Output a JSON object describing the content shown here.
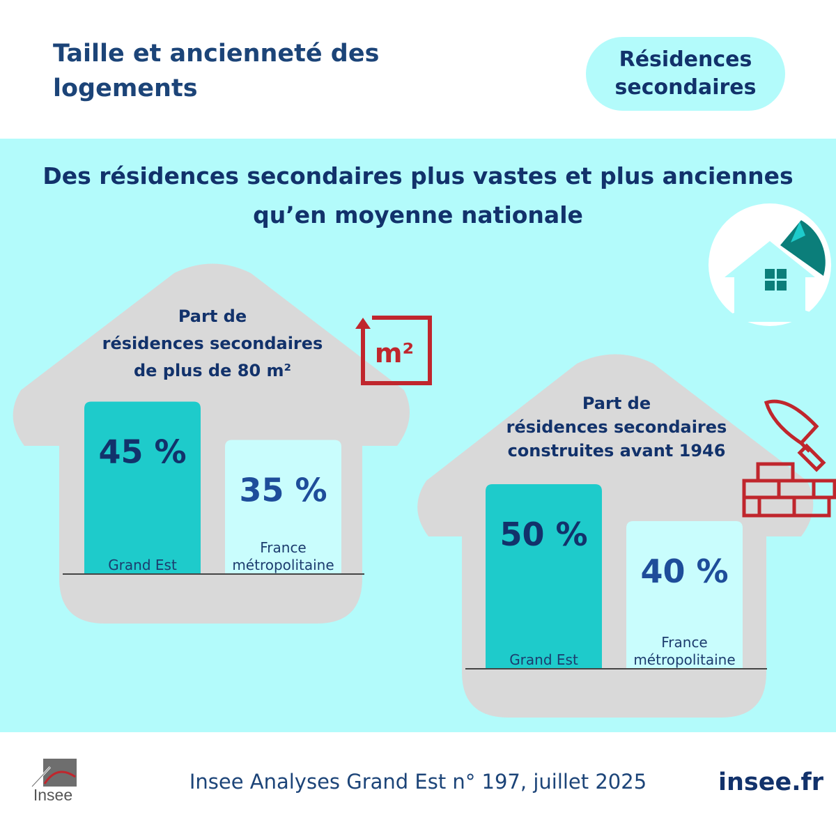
{
  "header": {
    "title": "Taille et ancienneté des logements",
    "tag": "Résidences secondaires"
  },
  "headline": "Des résidences secondaires plus vastes et plus anciennes qu’en moyenne nationale",
  "colors": {
    "navy": "#12326b",
    "title_blue": "#1c4478",
    "panel": "#b3fbfb",
    "teal_bar": "#1ecbcb",
    "light_bar": "#c9fdfd",
    "house_grey": "#d9d9d9",
    "icon_red": "#c0262d",
    "house_icon_teal": "#0b7e7a"
  },
  "icons": [
    "square-meter-icon",
    "house-icon",
    "trowel-bricks-icon",
    "insee-logo-icon"
  ],
  "chart_data": [
    {
      "type": "bar",
      "title": "Part de résidences secondaires de plus de 80 m²",
      "title_lines": [
        "Part de",
        "résidences secondaires",
        "de plus de 80 m²"
      ],
      "unit": "%",
      "categories": [
        "Grand Est",
        "France métropolitaine"
      ],
      "category_lines": [
        [
          "Grand Est"
        ],
        [
          "France",
          "métropolitaine"
        ]
      ],
      "values": [
        45,
        35
      ],
      "data_labels": [
        "45 %",
        "35 %"
      ],
      "ylim": [
        0,
        60
      ],
      "grid": false,
      "icon": "square-meter-icon",
      "icon_text": "m²"
    },
    {
      "type": "bar",
      "title": "Part de résidences secondaires construites avant 1946",
      "title_lines": [
        "Part de",
        "résidences secondaires",
        "construites avant 1946"
      ],
      "unit": "%",
      "categories": [
        "Grand Est",
        "France métropolitaine"
      ],
      "category_lines": [
        [
          "Grand Est"
        ],
        [
          "France",
          "métropolitaine"
        ]
      ],
      "values": [
        50,
        40
      ],
      "data_labels": [
        "50 %",
        "40 %"
      ],
      "ylim": [
        0,
        60
      ],
      "grid": false,
      "icon": "trowel-bricks-icon"
    }
  ],
  "footer": {
    "source": "Insee Analyses Grand Est n° 197, juillet 2025",
    "site": "insee.fr",
    "logo_text": "Insee"
  }
}
